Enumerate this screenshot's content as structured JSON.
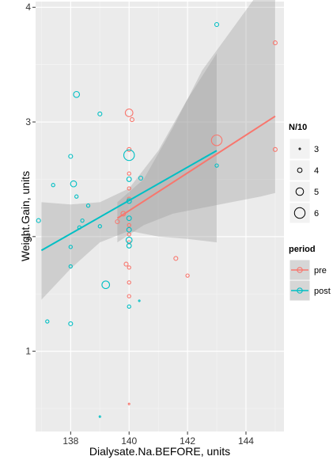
{
  "chart_data": {
    "type": "scatter",
    "xlabel": "Dialysate.Na.BEFORE, units",
    "ylabel": "Weight.Gain, units",
    "xlim": [
      136.8,
      145.3
    ],
    "ylim": [
      0.3,
      4.05
    ],
    "x_ticks": [
      138,
      140,
      142,
      144
    ],
    "x_tick_labels": [
      "138",
      "140",
      "142",
      "144"
    ],
    "y_ticks": [
      1,
      2,
      3,
      4
    ],
    "y_tick_labels": [
      "1",
      "2",
      "3",
      "4"
    ],
    "grid": true,
    "background": "#EBEBEB",
    "legend_placement": "right",
    "size_legend": {
      "title": "N/10",
      "values": [
        3,
        4,
        5,
        6
      ],
      "labels": [
        "3",
        "4",
        "5",
        "6"
      ]
    },
    "color_legend": {
      "title": "period",
      "entries": [
        {
          "label": "pre",
          "color": "#F8766D"
        },
        {
          "label": "post",
          "color": "#00BFC4"
        }
      ]
    },
    "series": [
      {
        "name": "pre",
        "color": "#F8766D",
        "points": [
          {
            "x": 139.6,
            "y": 2.13,
            "n": 3.8
          },
          {
            "x": 139.8,
            "y": 2.2,
            "n": 4.0
          },
          {
            "x": 139.9,
            "y": 1.76,
            "n": 3.8
          },
          {
            "x": 140.0,
            "y": 3.08,
            "n": 5.0
          },
          {
            "x": 140.1,
            "y": 3.02,
            "n": 3.8
          },
          {
            "x": 140.0,
            "y": 2.76,
            "n": 3.8
          },
          {
            "x": 140.0,
            "y": 2.55,
            "n": 3.6
          },
          {
            "x": 140.0,
            "y": 2.42,
            "n": 3.6
          },
          {
            "x": 140.0,
            "y": 2.33,
            "n": 3.6
          },
          {
            "x": 140.0,
            "y": 2.1,
            "n": 3.6
          },
          {
            "x": 140.0,
            "y": 2.02,
            "n": 3.6
          },
          {
            "x": 140.0,
            "y": 1.95,
            "n": 3.6
          },
          {
            "x": 140.0,
            "y": 1.73,
            "n": 3.6
          },
          {
            "x": 140.0,
            "y": 1.6,
            "n": 3.6
          },
          {
            "x": 140.0,
            "y": 1.48,
            "n": 3.6
          },
          {
            "x": 140.0,
            "y": 0.54,
            "n": 3.0
          },
          {
            "x": 141.6,
            "y": 1.81,
            "n": 3.8
          },
          {
            "x": 142.0,
            "y": 1.66,
            "n": 3.6
          },
          {
            "x": 143.0,
            "y": 2.84,
            "n": 6.0
          },
          {
            "x": 145.0,
            "y": 3.69,
            "n": 3.8
          },
          {
            "x": 145.0,
            "y": 2.76,
            "n": 3.8
          }
        ]
      },
      {
        "name": "post",
        "color": "#00BFC4",
        "points": [
          {
            "x": 136.9,
            "y": 2.14,
            "n": 3.8
          },
          {
            "x": 137.2,
            "y": 1.26,
            "n": 3.6
          },
          {
            "x": 137.4,
            "y": 2.45,
            "n": 3.6
          },
          {
            "x": 138.0,
            "y": 1.24,
            "n": 3.8
          },
          {
            "x": 138.0,
            "y": 1.91,
            "n": 3.6
          },
          {
            "x": 138.0,
            "y": 1.74,
            "n": 3.6
          },
          {
            "x": 138.0,
            "y": 2.7,
            "n": 3.8
          },
          {
            "x": 138.1,
            "y": 2.46,
            "n": 4.5
          },
          {
            "x": 138.2,
            "y": 3.24,
            "n": 4.5
          },
          {
            "x": 138.2,
            "y": 2.35,
            "n": 3.6
          },
          {
            "x": 138.3,
            "y": 2.08,
            "n": 3.6
          },
          {
            "x": 138.4,
            "y": 2.14,
            "n": 3.6
          },
          {
            "x": 138.6,
            "y": 2.27,
            "n": 3.6
          },
          {
            "x": 139.0,
            "y": 3.07,
            "n": 3.8
          },
          {
            "x": 139.0,
            "y": 2.09,
            "n": 3.6
          },
          {
            "x": 139.0,
            "y": 0.43,
            "n": 3.0
          },
          {
            "x": 139.2,
            "y": 1.58,
            "n": 5.0
          },
          {
            "x": 140.0,
            "y": 2.71,
            "n": 6.0
          },
          {
            "x": 140.0,
            "y": 2.5,
            "n": 4.0
          },
          {
            "x": 140.0,
            "y": 2.31,
            "n": 4.0
          },
          {
            "x": 140.0,
            "y": 2.16,
            "n": 4.0
          },
          {
            "x": 140.0,
            "y": 2.06,
            "n": 4.0
          },
          {
            "x": 140.0,
            "y": 1.97,
            "n": 4.5
          },
          {
            "x": 140.0,
            "y": 1.92,
            "n": 4.0
          },
          {
            "x": 140.0,
            "y": 1.39,
            "n": 3.6
          },
          {
            "x": 140.35,
            "y": 1.44,
            "n": 3.0
          },
          {
            "x": 140.4,
            "y": 2.51,
            "n": 3.8
          },
          {
            "x": 143.0,
            "y": 3.85,
            "n": 3.8
          },
          {
            "x": 143.0,
            "y": 2.62,
            "n": 3.6
          }
        ]
      }
    ],
    "fits": [
      {
        "series": "pre",
        "color": "#F8766D",
        "x": [
          139.6,
          145.0
        ],
        "y": [
          2.16,
          3.05
        ],
        "ci_x": [
          139.6,
          140.5,
          141.5,
          142.5,
          143.5,
          144.5,
          145.0
        ],
        "ci_upper": [
          2.3,
          2.5,
          2.95,
          3.45,
          3.8,
          4.15,
          4.3
        ],
        "ci_lower": [
          1.95,
          2.1,
          2.2,
          2.25,
          2.3,
          2.35,
          2.38
        ]
      },
      {
        "series": "post",
        "color": "#00BFC4",
        "x": [
          137.0,
          143.0
        ],
        "y": [
          1.88,
          2.75
        ],
        "ci_x": [
          137.0,
          138.0,
          139.0,
          140.0,
          141.0,
          142.0,
          143.0
        ],
        "ci_upper": [
          2.3,
          2.28,
          2.3,
          2.42,
          2.75,
          3.2,
          3.6
        ],
        "ci_lower": [
          1.45,
          1.72,
          1.95,
          2.05,
          2.0,
          1.98,
          1.95
        ]
      }
    ]
  }
}
